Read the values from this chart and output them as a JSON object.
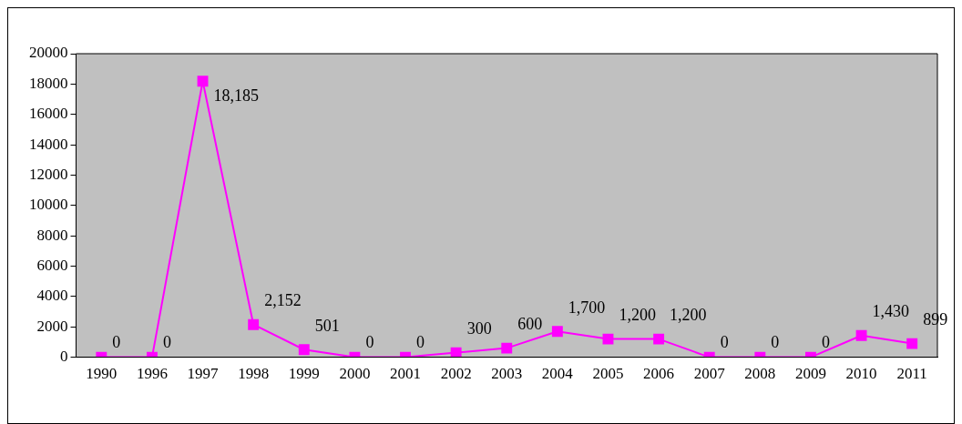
{
  "chart_data": {
    "type": "line",
    "categories": [
      "1990",
      "1996",
      "1997",
      "1998",
      "1999",
      "2000",
      "2001",
      "2002",
      "2003",
      "2004",
      "2005",
      "2006",
      "2007",
      "2008",
      "2009",
      "2010",
      "2011"
    ],
    "series": [
      {
        "color": "#ff00ff",
        "values": [
          0,
          0,
          18185,
          2152,
          501,
          0,
          0,
          300,
          600,
          1700,
          1200,
          1200,
          0,
          0,
          0,
          1430,
          899
        ],
        "value_labels": [
          "0",
          "0",
          "18,185",
          "2,152",
          "501",
          "0",
          "0",
          "300",
          "600",
          "1,700",
          "1,200",
          "1,200",
          "0",
          "0",
          "0",
          "1,430",
          "899"
        ]
      }
    ],
    "ylim": [
      0,
      20000
    ],
    "yticks": [
      0,
      2000,
      4000,
      6000,
      8000,
      10000,
      12000,
      14000,
      16000,
      18000,
      20000
    ],
    "grid": false,
    "legend": false,
    "marker": "square",
    "line_style": "solid"
  }
}
